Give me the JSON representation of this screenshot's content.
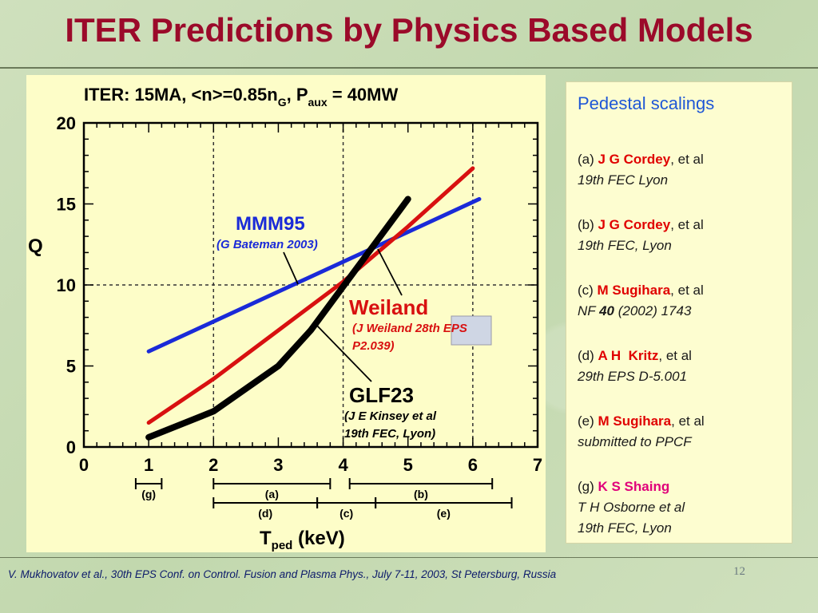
{
  "slide": {
    "title": "ITER Predictions by Physics Based Models",
    "footer": "V. Mukhovatov et al., 30th EPS Conf. on Control. Fusion and Plasma Phys., July 7-11, 2003, St Petersburg, Russia",
    "page_number": "12"
  },
  "chart_data": {
    "type": "line",
    "title": "ITER: 15MA, <n>=0.85n_G, P_aux = 40MW",
    "title_parts": {
      "main": "ITER: 15MA, <n>=0.85n",
      "sub_g": "G",
      "mid": ", P",
      "sub_aux": "aux",
      "end": " = 40MW"
    },
    "xlabel": "T_ped (keV)",
    "xlabel_parts": {
      "main": "T",
      "sub": "ped",
      "end": " (keV)"
    },
    "ylabel": "Q",
    "xlim": [
      0,
      7
    ],
    "ylim": [
      0,
      20
    ],
    "x_ticks": [
      "0",
      "1",
      "2",
      "3",
      "4",
      "5",
      "6",
      "7"
    ],
    "y_ticks": [
      "0",
      "5",
      "10",
      "15",
      "20"
    ],
    "reference_lines": {
      "x": [
        2,
        4,
        6
      ],
      "y": [
        10
      ]
    },
    "series": [
      {
        "name": "MMM95",
        "color": "#1a2ad8",
        "x": [
          1,
          6.1
        ],
        "y": [
          5.9,
          15.3
        ]
      },
      {
        "name": "Weiland",
        "color": "#d81010",
        "x": [
          1,
          2,
          3,
          4,
          5,
          6
        ],
        "y": [
          1.5,
          4.2,
          7.2,
          10.2,
          13.6,
          17.2
        ]
      },
      {
        "name": "GLF23",
        "color": "#000000",
        "x": [
          1,
          2,
          3,
          3.5,
          4,
          4.5,
          5
        ],
        "y": [
          0.6,
          2.2,
          5.0,
          7.2,
          9.9,
          12.6,
          15.3
        ]
      }
    ],
    "annotations": [
      {
        "label": "MMM95",
        "note": "(G Bateman 2003)",
        "color": "#1a2ad8"
      },
      {
        "label": "Weiland",
        "note": "(J Weiland 28th EPS",
        "note2": "P2.039)",
        "color": "#d81010"
      },
      {
        "label": "GLF23",
        "note": "(J E Kinsey et al",
        "note2": "19th FEC, Lyon)",
        "color": "#000000"
      }
    ],
    "ranges": [
      {
        "label": "(g)",
        "x": [
          0.8,
          1.2
        ],
        "row": 1
      },
      {
        "label": "(a)",
        "x": [
          2.0,
          3.8
        ],
        "row": 1
      },
      {
        "label": "(b)",
        "x": [
          4.1,
          6.3
        ],
        "row": 1
      },
      {
        "label": "(d)",
        "x": [
          2.0,
          3.6
        ],
        "row": 2
      },
      {
        "label": "(c)",
        "x": [
          3.6,
          4.5
        ],
        "row": 2
      },
      {
        "label": "(e)",
        "x": [
          4.5,
          6.6
        ],
        "row": 2
      }
    ]
  },
  "references": {
    "heading": "Pedestal scalings",
    "items": [
      {
        "tag": "(a) ",
        "author": "J G Cordey",
        "suffix": ", et al",
        "source": "19th FEC Lyon"
      },
      {
        "tag": "(b) ",
        "author": "J G Cordey",
        "suffix": ", et al",
        "source": "19th FEC, Lyon"
      },
      {
        "tag": "(c) ",
        "author": "M Sugihara",
        "suffix": ", et al",
        "source_pre": "NF ",
        "source_bold": "40",
        "source_post": " (2002) 1743"
      },
      {
        "tag": "(d) ",
        "author": "A H  Kritz",
        "suffix": ", et al",
        "source": "29th EPS D-5.001"
      },
      {
        "tag": "(e) ",
        "author": "M Sugihara",
        "suffix": ", et al",
        "source": "submitted to PPCF"
      },
      {
        "tag": "(g) ",
        "author": "K S Shaing",
        "suffix": "",
        "source": "T H Osborne et al",
        "source2": "19th FEC, Lyon"
      }
    ]
  }
}
